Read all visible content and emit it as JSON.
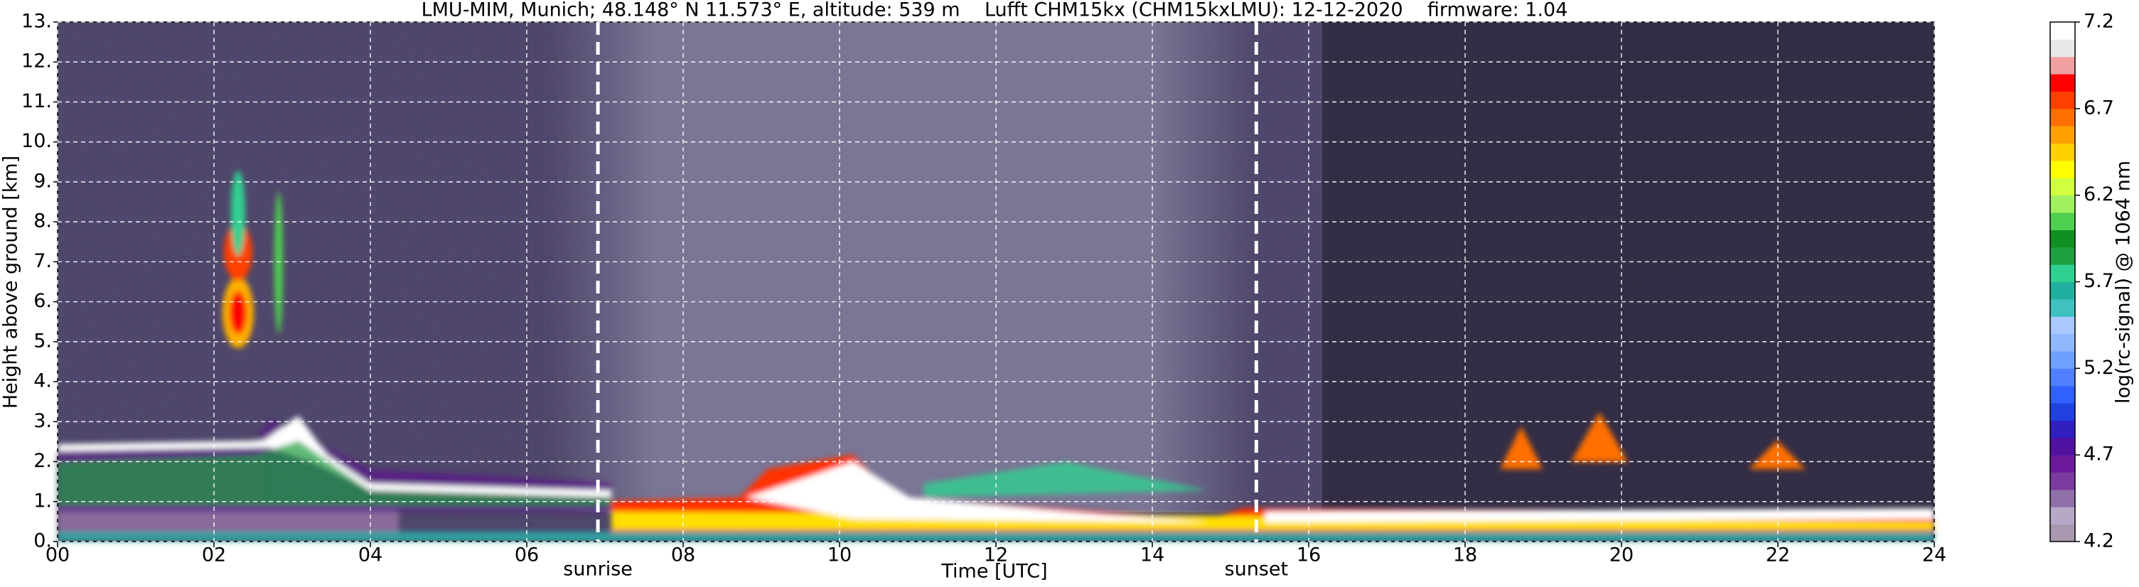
{
  "chart_data": {
    "type": "heatmap",
    "title": "LMU-MIM, Munich; 48.148° N 11.573° E, altitude: 539 m    Lufft CHM15kx (CHM15kxLMU): 12-12-2020    firmware: 1.04",
    "xlabel": "Time [UTC]",
    "ylabel": "Height above ground [km]",
    "xlim": [
      0,
      24
    ],
    "xticks": [
      {
        "value": 0,
        "label": "00"
      },
      {
        "value": 2,
        "label": "02"
      },
      {
        "value": 4,
        "label": "04"
      },
      {
        "value": 6,
        "label": "06"
      },
      {
        "value": 8,
        "label": "08"
      },
      {
        "value": 10,
        "label": "10"
      },
      {
        "value": 12,
        "label": "12"
      },
      {
        "value": 14,
        "label": "14"
      },
      {
        "value": 16,
        "label": "16"
      },
      {
        "value": 18,
        "label": "18"
      },
      {
        "value": 20,
        "label": "20"
      },
      {
        "value": 22,
        "label": "22"
      },
      {
        "value": 24,
        "label": "24"
      }
    ],
    "ylim": [
      0,
      13
    ],
    "yticks": [
      {
        "value": 0,
        "label": "0."
      },
      {
        "value": 1,
        "label": "1."
      },
      {
        "value": 2,
        "label": "2."
      },
      {
        "value": 3,
        "label": "3."
      },
      {
        "value": 4,
        "label": "4."
      },
      {
        "value": 5,
        "label": "5."
      },
      {
        "value": 6,
        "label": "6."
      },
      {
        "value": 7,
        "label": "7."
      },
      {
        "value": 8,
        "label": "8."
      },
      {
        "value": 9,
        "label": "9."
      },
      {
        "value": 10,
        "label": "10."
      },
      {
        "value": 11,
        "label": "11."
      },
      {
        "value": 12,
        "label": "12."
      },
      {
        "value": 13,
        "label": "13."
      }
    ],
    "grid": true,
    "annotations": [
      {
        "x": 6.91,
        "label": "sunrise"
      },
      {
        "x": 15.33,
        "label": "sunset"
      }
    ],
    "colorbar": {
      "label": "log(rc-signal) @ 1064 nm",
      "clim": [
        4.2,
        7.2
      ],
      "ticks": [
        4.2,
        4.7,
        5.2,
        5.7,
        6.2,
        6.7,
        7.2
      ],
      "colors": [
        "#a898b0",
        "#b8a8c8",
        "#9070a8",
        "#7a3aa0",
        "#6a1a9a",
        "#5010a0",
        "#3020c0",
        "#2040e0",
        "#3060ff",
        "#5080ff",
        "#70a0ff",
        "#90b8ff",
        "#a8c8ff",
        "#40c0c0",
        "#20b0a0",
        "#30d090",
        "#20a040",
        "#109020",
        "#50d050",
        "#a0f060",
        "#d0ff40",
        "#ffff00",
        "#ffd000",
        "#ffa000",
        "#ff7000",
        "#ff4000",
        "#ff0000",
        "#f0a0a0",
        "#e8e8e8",
        "#ffffff"
      ]
    }
  }
}
